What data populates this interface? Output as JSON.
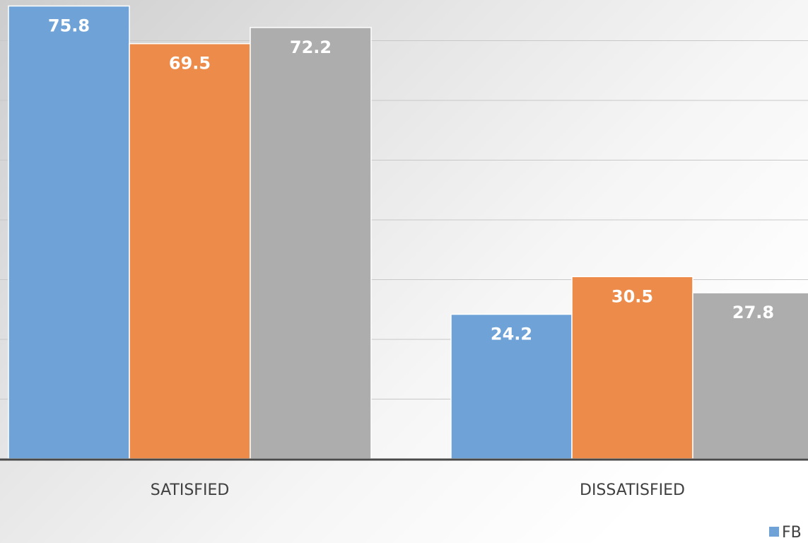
{
  "chart_data": {
    "type": "bar",
    "categories": [
      "SATISFIED",
      "DISSATISFIED"
    ],
    "series": [
      {
        "values": [
          75.8,
          24.2
        ],
        "color": "#6fa3d8"
      },
      {
        "values": [
          69.5,
          30.5
        ],
        "color": "#ed8c4a"
      },
      {
        "values": [
          72.2,
          27.8
        ],
        "color": "#adadad"
      }
    ],
    "ylim": [
      0,
      80
    ],
    "grid": true,
    "legend": {
      "position": "bottom-right",
      "visible_text": "FB"
    }
  }
}
